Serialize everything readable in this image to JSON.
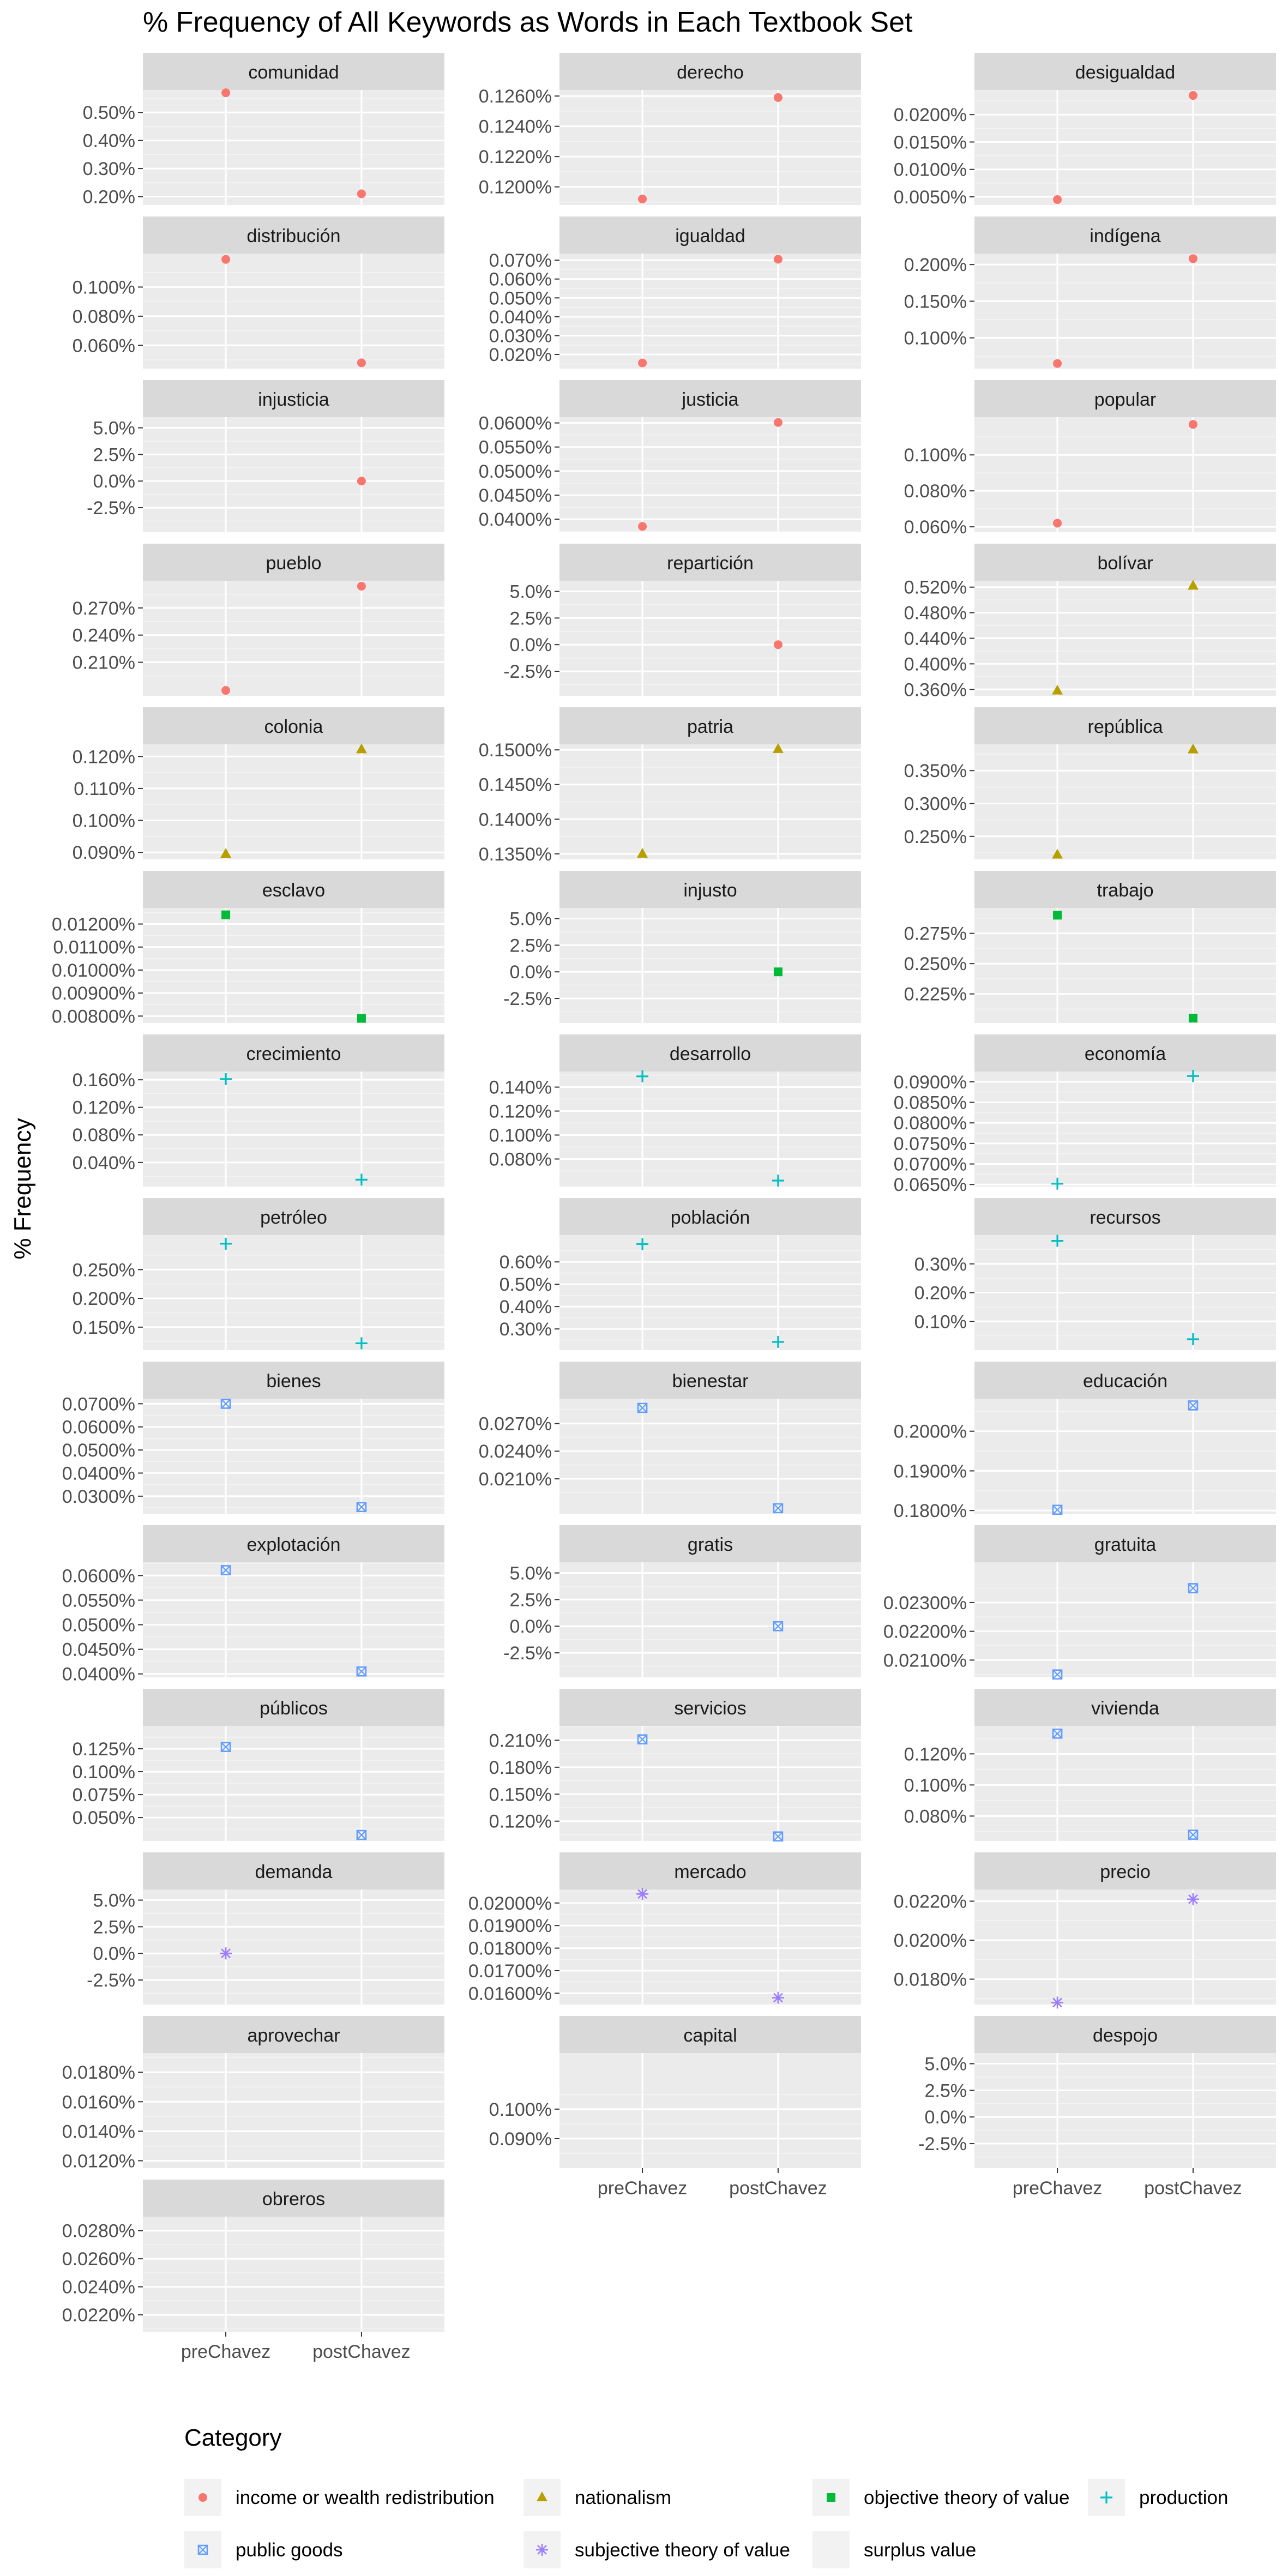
{
  "chart_data": {
    "type": "scatter",
    "title": "% Frequency of All Keywords as Words in Each Textbook Set",
    "ylabel": "% Frequency",
    "xlabel": "",
    "categories": [
      "preChavez",
      "postChavez"
    ],
    "facet_layout": "wrap, 3 columns",
    "grid": true,
    "legend": {
      "title": "Category",
      "placement": "bottom",
      "entries": [
        {
          "name": "income or wealth redistribution",
          "color": "#F8766D",
          "shape": "circle"
        },
        {
          "name": "nationalism",
          "color": "#B79F00",
          "shape": "triangle"
        },
        {
          "name": "objective theory of value",
          "color": "#00BA38",
          "shape": "square"
        },
        {
          "name": "production",
          "color": "#00BFC4",
          "shape": "plus"
        },
        {
          "name": "public goods",
          "color": "#619CFF",
          "shape": "boxed-x"
        },
        {
          "name": "subjective theory of value",
          "color": "#9c7cff",
          "shape": "asterisk"
        },
        {
          "name": "surplus value",
          "color": "#F564E3",
          "shape": "none"
        }
      ]
    },
    "panels": [
      {
        "name": "comunidad",
        "category": "income or wealth redistribution",
        "ylim": [
          0.17,
          0.58
        ],
        "ticks": [
          0.2,
          0.3,
          0.4,
          0.5
        ],
        "tick_labels": [
          "0.20%",
          "0.30%",
          "0.40%",
          "0.50%"
        ],
        "values": [
          0.57,
          0.21
        ]
      },
      {
        "name": "derecho",
        "category": "income or wealth redistribution",
        "ylim": [
          0.1188,
          0.1264
        ],
        "ticks": [
          0.12,
          0.122,
          0.124,
          0.126
        ],
        "tick_labels": [
          "0.1200%",
          "0.1220%",
          "0.1240%",
          "0.1260%"
        ],
        "values": [
          0.1192,
          0.1259
        ]
      },
      {
        "name": "desigualdad",
        "category": "income or wealth redistribution",
        "ylim": [
          0.0035,
          0.0245
        ],
        "ticks": [
          0.005,
          0.01,
          0.015,
          0.02
        ],
        "tick_labels": [
          "0.0050%",
          "0.0100%",
          "0.0150%",
          "0.0200%"
        ],
        "values": [
          0.0045,
          0.0235
        ]
      },
      {
        "name": "distribución",
        "category": "income or wealth redistribution",
        "ylim": [
          0.044,
          0.123
        ],
        "ticks": [
          0.06,
          0.08,
          0.1
        ],
        "tick_labels": [
          "0.060%",
          "0.080%",
          "0.100%"
        ],
        "values": [
          0.119,
          0.048
        ]
      },
      {
        "name": "igualdad",
        "category": "income or wealth redistribution",
        "ylim": [
          0.0125,
          0.0735
        ],
        "ticks": [
          0.02,
          0.03,
          0.04,
          0.05,
          0.06,
          0.07
        ],
        "tick_labels": [
          "0.020%",
          "0.030%",
          "0.040%",
          "0.050%",
          "0.060%",
          "0.070%"
        ],
        "values": [
          0.0155,
          0.0705
        ]
      },
      {
        "name": "indígena",
        "category": "income or wealth redistribution",
        "ylim": [
          0.058,
          0.215
        ],
        "ticks": [
          0.1,
          0.15,
          0.2
        ],
        "tick_labels": [
          "0.100%",
          "0.150%",
          "0.200%"
        ],
        "values": [
          0.065,
          0.208
        ]
      },
      {
        "name": "injusticia",
        "category": "income or wealth redistribution",
        "ylim": [
          -4.8,
          6.0
        ],
        "ticks": [
          -2.5,
          0,
          2.5,
          5
        ],
        "tick_labels": [
          "-2.5%",
          "0.0%",
          "2.5%",
          "5.0%"
        ],
        "values": [
          null,
          0.0
        ]
      },
      {
        "name": "justicia",
        "category": "income or wealth redistribution",
        "ylim": [
          0.0373,
          0.0612
        ],
        "ticks": [
          0.04,
          0.045,
          0.05,
          0.055,
          0.06
        ],
        "tick_labels": [
          "0.0400%",
          "0.0450%",
          "0.0500%",
          "0.0550%",
          "0.0600%"
        ],
        "values": [
          0.0385,
          0.0601
        ]
      },
      {
        "name": "popular",
        "category": "income or wealth redistribution",
        "ylim": [
          0.057,
          0.121
        ],
        "ticks": [
          0.06,
          0.08,
          0.1
        ],
        "tick_labels": [
          "0.060%",
          "0.080%",
          "0.100%"
        ],
        "values": [
          0.062,
          0.117
        ]
      },
      {
        "name": "pueblo",
        "category": "income or wealth redistribution",
        "ylim": [
          0.173,
          0.3
        ],
        "ticks": [
          0.21,
          0.24,
          0.27
        ],
        "tick_labels": [
          "0.210%",
          "0.240%",
          "0.270%"
        ],
        "values": [
          0.179,
          0.294
        ]
      },
      {
        "name": "repartición",
        "category": "income or wealth redistribution",
        "ylim": [
          -4.8,
          6.0
        ],
        "ticks": [
          -2.5,
          0,
          2.5,
          5
        ],
        "tick_labels": [
          "-2.5%",
          "0.0%",
          "2.5%",
          "5.0%"
        ],
        "values": [
          null,
          0.0
        ]
      },
      {
        "name": "bolívar",
        "category": "nationalism",
        "ylim": [
          0.35,
          0.53
        ],
        "ticks": [
          0.36,
          0.4,
          0.44,
          0.48,
          0.52
        ],
        "tick_labels": [
          "0.360%",
          "0.400%",
          "0.440%",
          "0.480%",
          "0.520%"
        ],
        "values": [
          0.358,
          0.522
        ]
      },
      {
        "name": "colonia",
        "category": "nationalism",
        "ylim": [
          0.0878,
          0.1238
        ],
        "ticks": [
          0.09,
          0.1,
          0.11,
          0.12
        ],
        "tick_labels": [
          "0.090%",
          "0.100%",
          "0.110%",
          "0.120%"
        ],
        "values": [
          0.0895,
          0.1222
        ]
      },
      {
        "name": "patria",
        "category": "nationalism",
        "ylim": [
          0.1342,
          0.1508
        ],
        "ticks": [
          0.135,
          0.14,
          0.145,
          0.15
        ],
        "tick_labels": [
          "0.1350%",
          "0.1400%",
          "0.1450%",
          "0.1500%"
        ],
        "values": [
          0.135,
          0.1501
        ]
      },
      {
        "name": "república",
        "category": "nationalism",
        "ylim": [
          0.215,
          0.39
        ],
        "ticks": [
          0.25,
          0.3,
          0.35
        ],
        "tick_labels": [
          "0.250%",
          "0.300%",
          "0.350%"
        ],
        "values": [
          0.222,
          0.382
        ]
      },
      {
        "name": "esclavo",
        "category": "objective theory of value",
        "ylim": [
          0.0077,
          0.0127
        ],
        "ticks": [
          0.008,
          0.009,
          0.01,
          0.011,
          0.012
        ],
        "tick_labels": [
          "0.00800%",
          "0.00900%",
          "0.01000%",
          "0.01100%",
          "0.01200%"
        ],
        "values": [
          0.0124,
          0.0079
        ]
      },
      {
        "name": "injusto",
        "category": "objective theory of value",
        "ylim": [
          -4.8,
          6.0
        ],
        "ticks": [
          -2.5,
          0,
          2.5,
          5
        ],
        "tick_labels": [
          "-2.5%",
          "0.0%",
          "2.5%",
          "5.0%"
        ],
        "values": [
          null,
          0.0
        ]
      },
      {
        "name": "trabajo",
        "category": "objective theory of value",
        "ylim": [
          0.201,
          0.296
        ],
        "ticks": [
          0.225,
          0.25,
          0.275
        ],
        "tick_labels": [
          "0.225%",
          "0.250%",
          "0.275%"
        ],
        "values": [
          0.29,
          0.205
        ]
      },
      {
        "name": "crecimiento",
        "category": "production",
        "ylim": [
          0.005,
          0.172
        ],
        "ticks": [
          0.04,
          0.08,
          0.12,
          0.16
        ],
        "tick_labels": [
          "0.040%",
          "0.080%",
          "0.120%",
          "0.160%"
        ],
        "values": [
          0.161,
          0.015
        ]
      },
      {
        "name": "desarrollo",
        "category": "production",
        "ylim": [
          0.057,
          0.153
        ],
        "ticks": [
          0.08,
          0.1,
          0.12,
          0.14
        ],
        "tick_labels": [
          "0.080%",
          "0.100%",
          "0.120%",
          "0.140%"
        ],
        "values": [
          0.149,
          0.062
        ]
      },
      {
        "name": "economía",
        "category": "production",
        "ylim": [
          0.0645,
          0.0925
        ],
        "ticks": [
          0.065,
          0.07,
          0.075,
          0.08,
          0.085,
          0.09
        ],
        "tick_labels": [
          "0.0650%",
          "0.0700%",
          "0.0750%",
          "0.0800%",
          "0.0850%",
          "0.0900%"
        ],
        "values": [
          0.0652,
          0.0914
        ]
      },
      {
        "name": "petróleo",
        "category": "production",
        "ylim": [
          0.11,
          0.31
        ],
        "ticks": [
          0.15,
          0.2,
          0.25
        ],
        "tick_labels": [
          "0.150%",
          "0.200%",
          "0.250%"
        ],
        "values": [
          0.295,
          0.122
        ]
      },
      {
        "name": "población",
        "category": "production",
        "ylim": [
          0.205,
          0.72
        ],
        "ticks": [
          0.3,
          0.4,
          0.5,
          0.6
        ],
        "tick_labels": [
          "0.30%",
          "0.40%",
          "0.50%",
          "0.60%"
        ],
        "values": [
          0.68,
          0.242
        ]
      },
      {
        "name": "recursos",
        "category": "production",
        "ylim": [
          0.0,
          0.4
        ],
        "ticks": [
          0.1,
          0.2,
          0.3
        ],
        "tick_labels": [
          "0.10%",
          "0.20%",
          "0.30%"
        ],
        "values": [
          0.38,
          0.038
        ]
      },
      {
        "name": "bienes",
        "category": "public goods",
        "ylim": [
          0.0224,
          0.0722
        ],
        "ticks": [
          0.03,
          0.04,
          0.05,
          0.06,
          0.07
        ],
        "tick_labels": [
          "0.0300%",
          "0.0400%",
          "0.0500%",
          "0.0600%",
          "0.0700%"
        ],
        "values": [
          0.07,
          0.0253
        ]
      },
      {
        "name": "bienestar",
        "category": "public goods",
        "ylim": [
          0.0172,
          0.0297
        ],
        "ticks": [
          0.021,
          0.024,
          0.027
        ],
        "tick_labels": [
          "0.0210%",
          "0.0240%",
          "0.0270%"
        ],
        "values": [
          0.0287,
          0.0178
        ]
      },
      {
        "name": "educación",
        "category": "public goods",
        "ylim": [
          0.1792,
          0.2082
        ],
        "ticks": [
          0.18,
          0.19,
          0.2
        ],
        "tick_labels": [
          "0.1800%",
          "0.1900%",
          "0.2000%"
        ],
        "values": [
          0.1802,
          0.2065
        ]
      },
      {
        "name": "explotación",
        "category": "public goods",
        "ylim": [
          0.0393,
          0.0627
        ],
        "ticks": [
          0.04,
          0.045,
          0.05,
          0.055,
          0.06
        ],
        "tick_labels": [
          "0.0400%",
          "0.0450%",
          "0.0500%",
          "0.0550%",
          "0.0600%"
        ],
        "values": [
          0.0611,
          0.0405
        ]
      },
      {
        "name": "gratis",
        "category": "public goods",
        "ylim": [
          -4.8,
          6.0
        ],
        "ticks": [
          -2.5,
          0,
          2.5,
          5
        ],
        "tick_labels": [
          "-2.5%",
          "0.0%",
          "2.5%",
          "5.0%"
        ],
        "values": [
          null,
          0.0
        ]
      },
      {
        "name": "gratuita",
        "category": "public goods",
        "ylim": [
          0.0204,
          0.0244
        ],
        "ticks": [
          0.021,
          0.022,
          0.023
        ],
        "tick_labels": [
          "0.02100%",
          "0.02200%",
          "0.02300%"
        ],
        "values": [
          0.0205,
          0.0235
        ]
      },
      {
        "name": "públicos",
        "category": "public goods",
        "ylim": [
          0.0245,
          0.15
        ],
        "ticks": [
          0.05,
          0.075,
          0.1,
          0.125
        ],
        "tick_labels": [
          "0.050%",
          "0.075%",
          "0.100%",
          "0.125%"
        ],
        "values": [
          0.127,
          0.031
        ]
      },
      {
        "name": "servicios",
        "category": "public goods",
        "ylim": [
          0.098,
          0.226
        ],
        "ticks": [
          0.12,
          0.15,
          0.18,
          0.21
        ],
        "tick_labels": [
          "0.120%",
          "0.150%",
          "0.180%",
          "0.210%"
        ],
        "values": [
          0.211,
          0.103
        ]
      },
      {
        "name": "vivienda",
        "category": "public goods",
        "ylim": [
          0.064,
          0.138
        ],
        "ticks": [
          0.08,
          0.1,
          0.12
        ],
        "tick_labels": [
          "0.080%",
          "0.100%",
          "0.120%"
        ],
        "values": [
          0.133,
          0.068
        ]
      },
      {
        "name": "demanda",
        "category": "subjective theory of value",
        "ylim": [
          -4.8,
          6.0
        ],
        "ticks": [
          -2.5,
          0,
          2.5,
          5
        ],
        "tick_labels": [
          "-2.5%",
          "0.0%",
          "2.5%",
          "5.0%"
        ],
        "values": [
          0.0,
          null
        ]
      },
      {
        "name": "mercado",
        "category": "subjective theory of value",
        "ylim": [
          0.0155,
          0.0206
        ],
        "ticks": [
          0.016,
          0.017,
          0.018,
          0.019,
          0.02
        ],
        "tick_labels": [
          "0.01600%",
          "0.01700%",
          "0.01800%",
          "0.01900%",
          "0.02000%"
        ],
        "values": [
          0.0204,
          0.0158
        ]
      },
      {
        "name": "precio",
        "category": "subjective theory of value",
        "ylim": [
          0.0167,
          0.0226
        ],
        "ticks": [
          0.018,
          0.02,
          0.022
        ],
        "tick_labels": [
          "0.0180%",
          "0.0200%",
          "0.0220%"
        ],
        "values": [
          0.0168,
          0.0221
        ]
      },
      {
        "name": "aprovechar",
        "category": "surplus value",
        "ylim": [
          0.0115,
          0.0193
        ],
        "ticks": [
          0.012,
          0.014,
          0.016,
          0.018
        ],
        "tick_labels": [
          "0.0120%",
          "0.0140%",
          "0.0160%",
          "0.0180%"
        ],
        "values": [
          null,
          null
        ]
      },
      {
        "name": "capital",
        "category": "surplus value",
        "ylim": [
          0.08,
          0.119
        ],
        "ticks": [
          0.09,
          0.1
        ],
        "tick_labels": [
          "0.090%",
          "0.100%"
        ],
        "values": [
          null,
          null
        ]
      },
      {
        "name": "despojo",
        "category": "surplus value",
        "ylim": [
          -4.8,
          6.0
        ],
        "ticks": [
          -2.5,
          0,
          2.5,
          5
        ],
        "tick_labels": [
          "-2.5%",
          "0.0%",
          "2.5%",
          "5.0%"
        ],
        "values": [
          null,
          null
        ]
      },
      {
        "name": "obreros",
        "category": "surplus value",
        "ylim": [
          0.0208,
          0.029
        ],
        "ticks": [
          0.022,
          0.024,
          0.026,
          0.028
        ],
        "tick_labels": [
          "0.0220%",
          "0.0240%",
          "0.0260%",
          "0.0280%"
        ],
        "values": [
          null,
          null
        ]
      }
    ]
  }
}
